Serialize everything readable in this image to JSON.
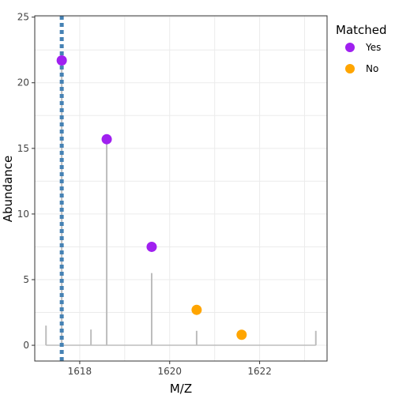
{
  "chart_data": {
    "type": "scatter",
    "title": "",
    "xlabel": "M/Z",
    "ylabel": "Abundance",
    "xlim": [
      1617.0,
      1623.5
    ],
    "ylim": [
      -1.2,
      25.1
    ],
    "x_ticks": [
      1618,
      1620,
      1622
    ],
    "x_tick_labels": [
      "1618",
      "1620",
      "1622"
    ],
    "y_ticks": [
      0,
      5,
      10,
      15,
      20,
      25
    ],
    "y_tick_labels": [
      "0",
      "5",
      "10",
      "15",
      "20",
      "25"
    ],
    "grid": true,
    "spectrum": {
      "baseline": 0,
      "x_range": [
        1617.25,
        1623.25
      ],
      "color": "#BDBDBD",
      "peaks": [
        {
          "x": 1617.25,
          "y": 1.5
        },
        {
          "x": 1617.6,
          "y": 21.7
        },
        {
          "x": 1618.25,
          "y": 1.2
        },
        {
          "x": 1618.6,
          "y": 15.7
        },
        {
          "x": 1619.6,
          "y": 5.5
        },
        {
          "x": 1620.6,
          "y": 1.1
        },
        {
          "x": 1623.25,
          "y": 1.1
        }
      ]
    },
    "vline": {
      "x": 1617.6,
      "color": "#4682B4",
      "style": "dotted"
    },
    "series": [
      {
        "name": "Yes",
        "color": "#A020F0",
        "points": [
          [
            1617.6,
            21.7
          ],
          [
            1618.6,
            15.7
          ],
          [
            1619.6,
            7.5
          ]
        ]
      },
      {
        "name": "No",
        "color": "#FFA500",
        "points": [
          [
            1620.6,
            2.7
          ],
          [
            1621.6,
            0.8
          ]
        ]
      }
    ],
    "legend": {
      "title": "Matched",
      "position": "right",
      "entries": [
        "Yes",
        "No"
      ]
    }
  }
}
